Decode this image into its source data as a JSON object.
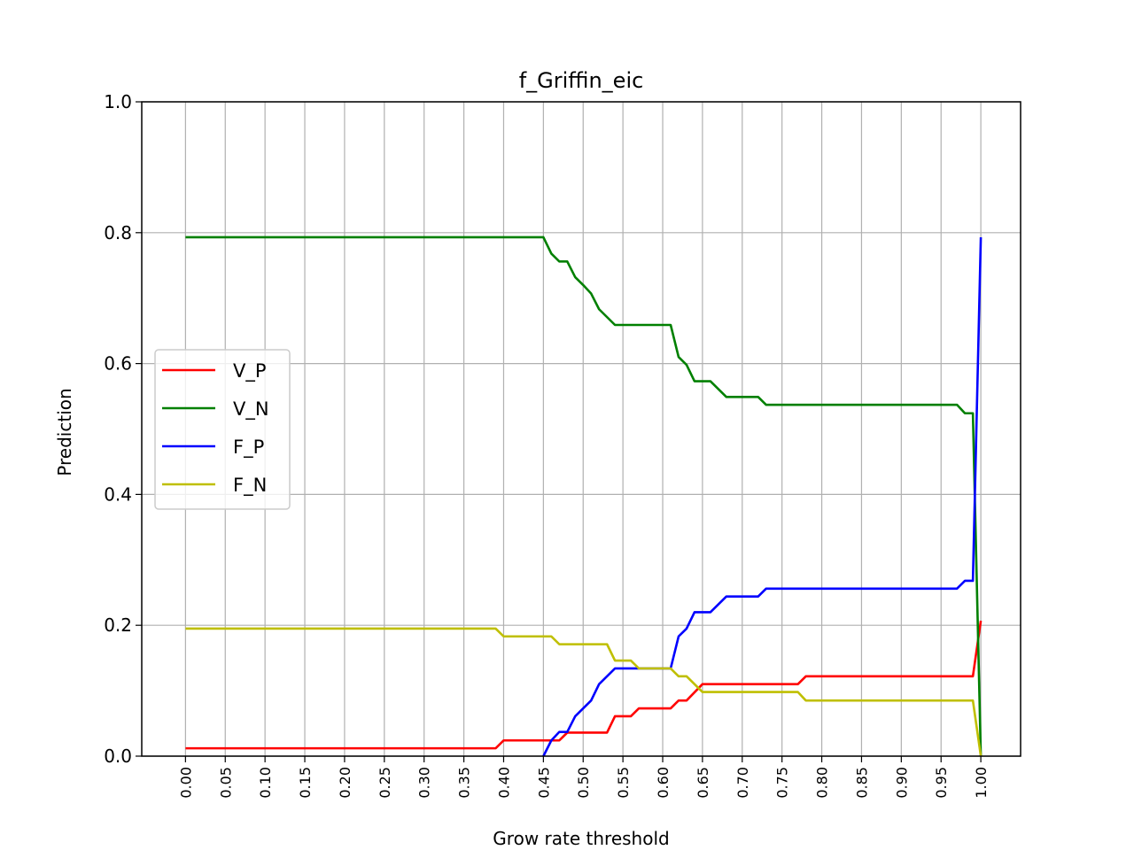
{
  "chart_data": {
    "type": "line",
    "title": "f_Griffin_eic",
    "xlabel": "Grow rate threshold",
    "ylabel": "Prediction",
    "xlim": [
      -0.055,
      1.05
    ],
    "ylim": [
      0,
      1
    ],
    "grid": true,
    "legend_position": "center-left",
    "x_ticks": [
      "0.00",
      "0.05",
      "0.10",
      "0.15",
      "0.20",
      "0.25",
      "0.30",
      "0.35",
      "0.40",
      "0.45",
      "0.50",
      "0.55",
      "0.60",
      "0.65",
      "0.70",
      "0.75",
      "0.80",
      "0.85",
      "0.90",
      "0.95",
      "1.00"
    ],
    "y_ticks": [
      "0.0",
      "0.2",
      "0.4",
      "0.6",
      "0.8",
      "1.0"
    ],
    "series": [
      {
        "name": "V_P",
        "color": "#ff0000",
        "points": [
          [
            0.0,
            0.012
          ],
          [
            0.39,
            0.012
          ],
          [
            0.4,
            0.024
          ],
          [
            0.46,
            0.024
          ],
          [
            0.47,
            0.024
          ],
          [
            0.48,
            0.036
          ],
          [
            0.53,
            0.036
          ],
          [
            0.54,
            0.061
          ],
          [
            0.56,
            0.061
          ],
          [
            0.57,
            0.073
          ],
          [
            0.61,
            0.073
          ],
          [
            0.62,
            0.085
          ],
          [
            0.63,
            0.085
          ],
          [
            0.65,
            0.11
          ],
          [
            0.77,
            0.11
          ],
          [
            0.78,
            0.122
          ],
          [
            0.98,
            0.122
          ],
          [
            0.99,
            0.122
          ],
          [
            1.0,
            0.207
          ]
        ]
      },
      {
        "name": "V_N",
        "color": "#008000",
        "points": [
          [
            0.0,
            0.793
          ],
          [
            0.45,
            0.793
          ],
          [
            0.46,
            0.768
          ],
          [
            0.47,
            0.756
          ],
          [
            0.48,
            0.756
          ],
          [
            0.49,
            0.732
          ],
          [
            0.5,
            0.72
          ],
          [
            0.51,
            0.707
          ],
          [
            0.52,
            0.683
          ],
          [
            0.53,
            0.671
          ],
          [
            0.54,
            0.659
          ],
          [
            0.61,
            0.659
          ],
          [
            0.62,
            0.61
          ],
          [
            0.63,
            0.598
          ],
          [
            0.64,
            0.573
          ],
          [
            0.66,
            0.573
          ],
          [
            0.68,
            0.549
          ],
          [
            0.72,
            0.549
          ],
          [
            0.73,
            0.537
          ],
          [
            0.97,
            0.537
          ],
          [
            0.98,
            0.524
          ],
          [
            0.99,
            0.524
          ],
          [
            1.0,
            0.0
          ]
        ]
      },
      {
        "name": "F_P",
        "color": "#0000ff",
        "points": [
          [
            0.45,
            0.0
          ],
          [
            0.46,
            0.024
          ],
          [
            0.47,
            0.037
          ],
          [
            0.48,
            0.037
          ],
          [
            0.49,
            0.061
          ],
          [
            0.5,
            0.073
          ],
          [
            0.51,
            0.085
          ],
          [
            0.52,
            0.11
          ],
          [
            0.53,
            0.122
          ],
          [
            0.54,
            0.134
          ],
          [
            0.61,
            0.134
          ],
          [
            0.62,
            0.183
          ],
          [
            0.63,
            0.195
          ],
          [
            0.64,
            0.22
          ],
          [
            0.66,
            0.22
          ],
          [
            0.68,
            0.244
          ],
          [
            0.72,
            0.244
          ],
          [
            0.73,
            0.256
          ],
          [
            0.97,
            0.256
          ],
          [
            0.98,
            0.268
          ],
          [
            0.99,
            0.268
          ],
          [
            1.0,
            0.793
          ]
        ]
      },
      {
        "name": "F_N",
        "color": "#bfbf00",
        "points": [
          [
            0.0,
            0.195
          ],
          [
            0.39,
            0.195
          ],
          [
            0.4,
            0.183
          ],
          [
            0.46,
            0.183
          ],
          [
            0.47,
            0.171
          ],
          [
            0.53,
            0.171
          ],
          [
            0.54,
            0.146
          ],
          [
            0.56,
            0.146
          ],
          [
            0.57,
            0.134
          ],
          [
            0.61,
            0.134
          ],
          [
            0.62,
            0.122
          ],
          [
            0.63,
            0.122
          ],
          [
            0.65,
            0.098
          ],
          [
            0.77,
            0.098
          ],
          [
            0.78,
            0.085
          ],
          [
            0.98,
            0.085
          ],
          [
            0.99,
            0.085
          ],
          [
            1.0,
            0.0
          ]
        ]
      }
    ]
  }
}
